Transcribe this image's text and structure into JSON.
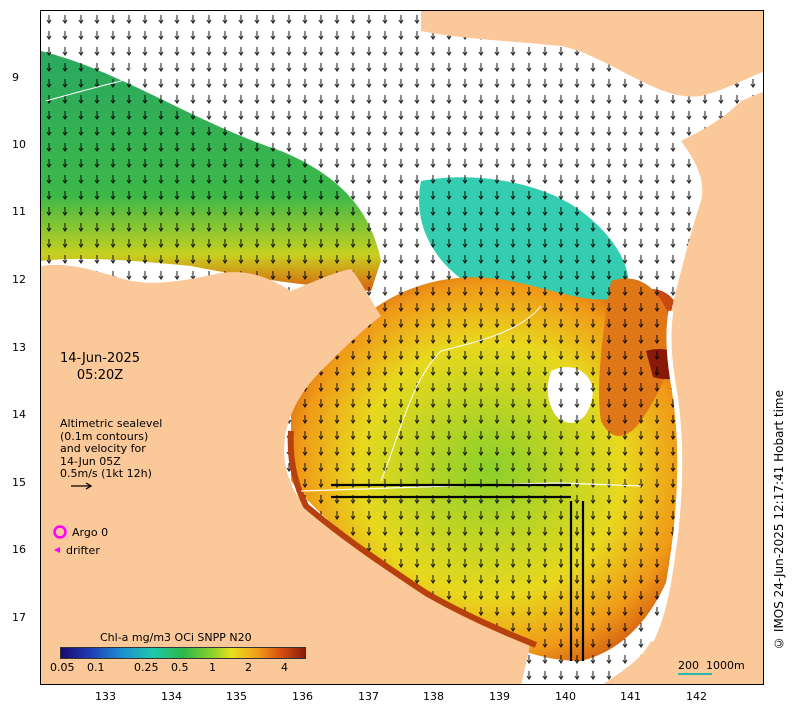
{
  "map": {
    "lat_ticks": [
      "9",
      "10",
      "11",
      "12",
      "13",
      "14",
      "15",
      "16",
      "17"
    ],
    "lon_ticks": [
      "133",
      "134",
      "135",
      "136",
      "137",
      "138",
      "139",
      "140",
      "141",
      "142"
    ],
    "date_line1": "14-Jun-2025",
    "date_line2": "05:20Z",
    "legend_lines": [
      "Altimetric sealevel",
      "(0.1m contours)",
      "and velocity for",
      "14-Jun 05Z",
      "0.5m/s (1kt 12h)"
    ],
    "argo_label": "Argo 0",
    "drifter_label": "drifter",
    "credit": "© IMOS 24-Jun-2025 12:17:41 Hobart time",
    "colorbar_title": "Chl-a mg/m3 OCi SNPP N20",
    "colorbar_ticks": [
      "0.05",
      "0.1",
      "0.25",
      "0.5",
      "1",
      "2",
      "4"
    ],
    "scalebar_label": "200  1000m",
    "colors": {
      "land": "#fbc89a",
      "ocean_cloud": "#ffffff",
      "chl_low": "#1ec8a8",
      "chl_mid": "#2cb84a",
      "chl_high": "#d85010",
      "argo": "#ff00ff",
      "scalebar": "#2ab8a8"
    }
  }
}
